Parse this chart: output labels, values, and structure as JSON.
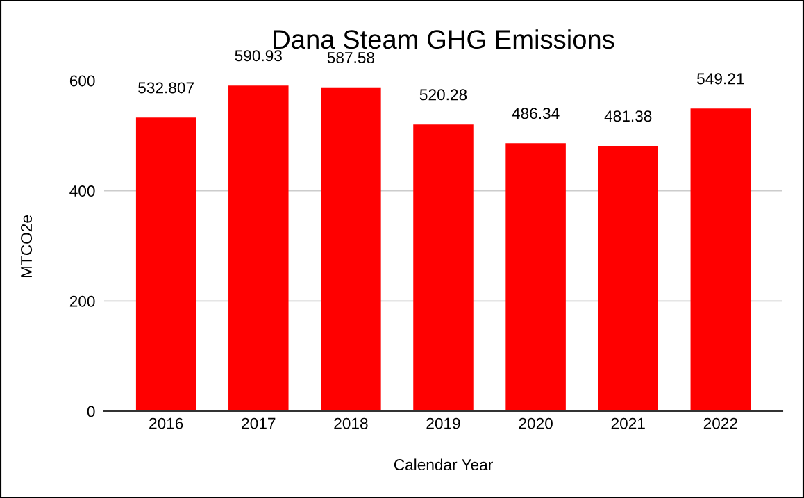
{
  "chart_data": {
    "type": "bar",
    "title": "Dana Steam GHG Emissions",
    "xlabel": "Calendar Year",
    "ylabel": "MTCO2e",
    "categories": [
      "2016",
      "2017",
      "2018",
      "2019",
      "2020",
      "2021",
      "2022"
    ],
    "values": [
      532.807,
      590.93,
      587.58,
      520.28,
      486.34,
      481.38,
      549.21
    ],
    "color": "#ff0000",
    "ylim": [
      0,
      600
    ],
    "yticks": [
      0,
      200,
      400,
      600
    ],
    "grid": "y",
    "data_labels": true
  }
}
